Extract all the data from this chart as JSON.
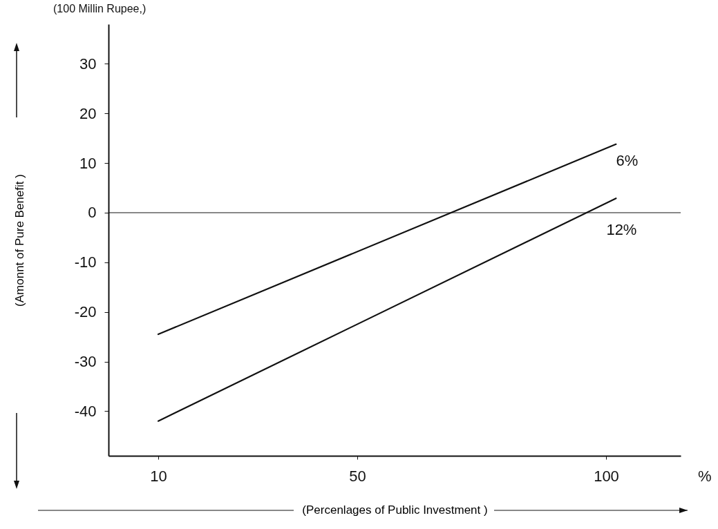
{
  "chart_data": {
    "type": "line",
    "xlabel": "(Percenlages of Public Investment )",
    "ylabel": "(Amonnt of Pure Benefit )",
    "annotations": [
      "(100 Millin Rupee,)",
      "%"
    ],
    "xlim": [
      0,
      115
    ],
    "xticks": [
      10,
      50,
      100
    ],
    "ylim": [
      -49,
      38
    ],
    "yticks": [
      -40,
      -30,
      -20,
      -10,
      0,
      10,
      20,
      30
    ],
    "x": [
      10,
      102
    ],
    "series": [
      {
        "name": "6%",
        "color": "#111111",
        "values": [
          -24.5,
          13.8
        ]
      },
      {
        "name": "12%",
        "color": "#111111",
        "values": [
          -42,
          2.9
        ]
      }
    ],
    "ref_lines": [
      {
        "axis": "y",
        "value": 0,
        "color": "#111111"
      }
    ],
    "grid": false,
    "legend": false,
    "marker": "none",
    "line_style": "solid"
  }
}
